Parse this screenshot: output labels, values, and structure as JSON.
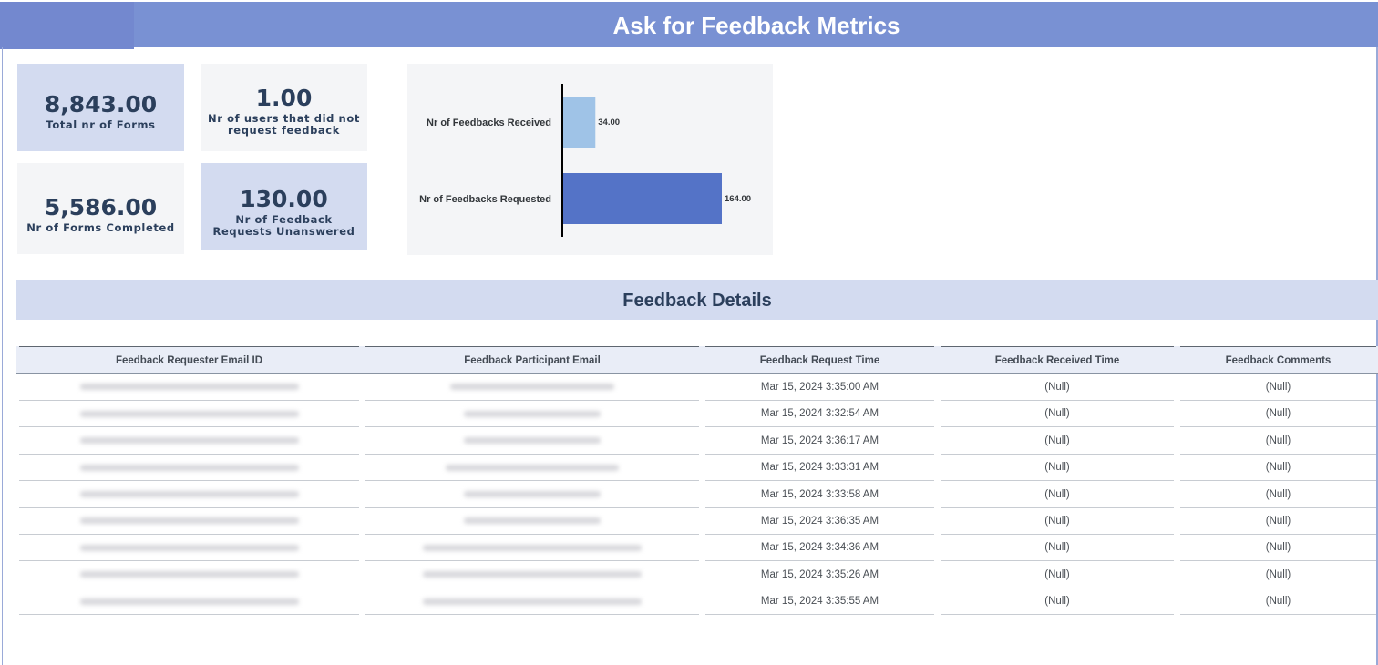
{
  "header": {
    "title": "Ask for Feedback Metrics"
  },
  "kpis": [
    {
      "value": "8,843.00",
      "label_lines": [
        "Total nr of Forms"
      ]
    },
    {
      "value": "1.00",
      "label_lines": [
        "Nr of users that did not",
        "request feedback"
      ]
    },
    {
      "value": "5,586.00",
      "label_lines": [
        "Nr of Forms Completed"
      ]
    },
    {
      "value": "130.00",
      "label_lines": [
        "Nr of Feedback",
        "Requests Unanswered"
      ]
    }
  ],
  "chart_data": {
    "type": "bar",
    "orientation": "horizontal",
    "categories": [
      "Nr of Feedbacks Received",
      "Nr of Feedbacks Requested"
    ],
    "values": [
      34,
      164
    ],
    "value_labels": [
      "34.00",
      "164.00"
    ],
    "colors": [
      "#9fc3e7",
      "#5473c7"
    ],
    "xlim": [
      0,
      164
    ],
    "grid": false
  },
  "section": {
    "title": "Feedback Details"
  },
  "table": {
    "columns": [
      "Feedback Requester Email ID",
      "Feedback Participant Email",
      "Feedback Request Time",
      "Feedback Received Time",
      "Feedback Comments"
    ],
    "rows": [
      {
        "request_time": "Mar 15, 2024 3:35:00 AM",
        "received_time": "(Null)",
        "comments": "(Null)"
      },
      {
        "request_time": "Mar 15, 2024 3:32:54 AM",
        "received_time": "(Null)",
        "comments": "(Null)"
      },
      {
        "request_time": "Mar 15, 2024 3:36:17 AM",
        "received_time": "(Null)",
        "comments": "(Null)"
      },
      {
        "request_time": "Mar 15, 2024 3:33:31 AM",
        "received_time": "(Null)",
        "comments": "(Null)"
      },
      {
        "request_time": "Mar 15, 2024 3:33:58 AM",
        "received_time": "(Null)",
        "comments": "(Null)"
      },
      {
        "request_time": "Mar 15, 2024 3:36:35 AM",
        "received_time": "(Null)",
        "comments": "(Null)"
      },
      {
        "request_time": "Mar 15, 2024 3:34:36 AM",
        "received_time": "(Null)",
        "comments": "(Null)"
      },
      {
        "request_time": "Mar 15, 2024 3:35:26 AM",
        "received_time": "(Null)",
        "comments": "(Null)"
      },
      {
        "request_time": "Mar 15, 2024 3:35:55 AM",
        "received_time": "(Null)",
        "comments": "(Null)"
      }
    ]
  }
}
